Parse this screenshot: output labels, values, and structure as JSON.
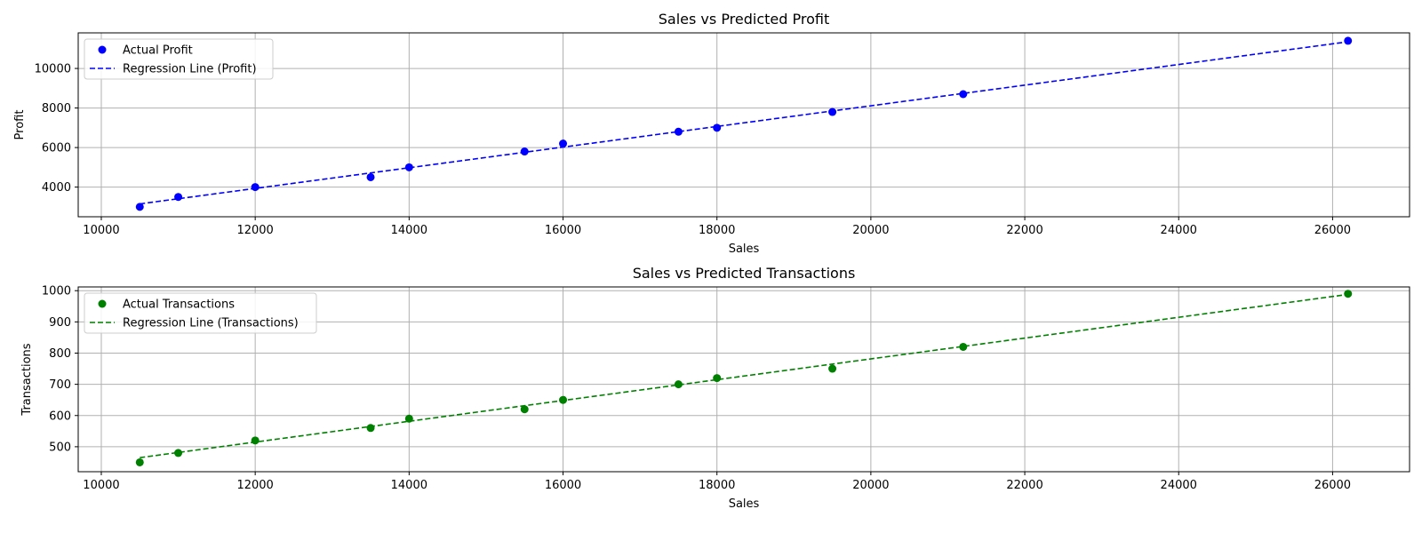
{
  "chart_data": [
    {
      "type": "scatter",
      "title": "Sales vs Predicted Profit",
      "xlabel": "Sales",
      "ylabel": "Profit",
      "xlim": [
        9700,
        27000
      ],
      "ylim": [
        2500,
        11800
      ],
      "xticks": [
        10000,
        12000,
        14000,
        16000,
        18000,
        20000,
        22000,
        24000,
        26000
      ],
      "yticks": [
        4000,
        6000,
        8000,
        10000
      ],
      "grid": true,
      "legend_position": "top-left",
      "color": "#0000ff",
      "series": [
        {
          "name": "Actual Profit",
          "kind": "scatter",
          "x": [
            10500,
            11000,
            12000,
            13500,
            14000,
            15500,
            16000,
            17500,
            18000,
            19500,
            21200,
            26200
          ],
          "y": [
            3000,
            3500,
            4000,
            4500,
            5000,
            5800,
            6200,
            6800,
            7000,
            7800,
            8700,
            11400
          ]
        },
        {
          "name": "Regression Line (Profit)",
          "kind": "line",
          "x": [
            10500,
            26200
          ],
          "y": [
            3150,
            11350
          ]
        }
      ]
    },
    {
      "type": "scatter",
      "title": "Sales vs Predicted Transactions",
      "xlabel": "Sales",
      "ylabel": "Transactions",
      "xlim": [
        9700,
        27000
      ],
      "ylim": [
        420,
        1012
      ],
      "xticks": [
        10000,
        12000,
        14000,
        16000,
        18000,
        20000,
        22000,
        24000,
        26000
      ],
      "yticks": [
        500,
        600,
        700,
        800,
        900,
        1000
      ],
      "grid": true,
      "legend_position": "top-left",
      "color": "#008000",
      "series": [
        {
          "name": "Actual Transactions",
          "kind": "scatter",
          "x": [
            10500,
            11000,
            12000,
            13500,
            14000,
            15500,
            16000,
            17500,
            18000,
            19500,
            21200,
            26200
          ],
          "y": [
            450,
            480,
            520,
            560,
            590,
            620,
            650,
            700,
            720,
            750,
            820,
            990
          ]
        },
        {
          "name": "Regression Line (Transactions)",
          "kind": "line",
          "x": [
            10500,
            26200
          ],
          "y": [
            465,
            988
          ]
        }
      ]
    }
  ]
}
